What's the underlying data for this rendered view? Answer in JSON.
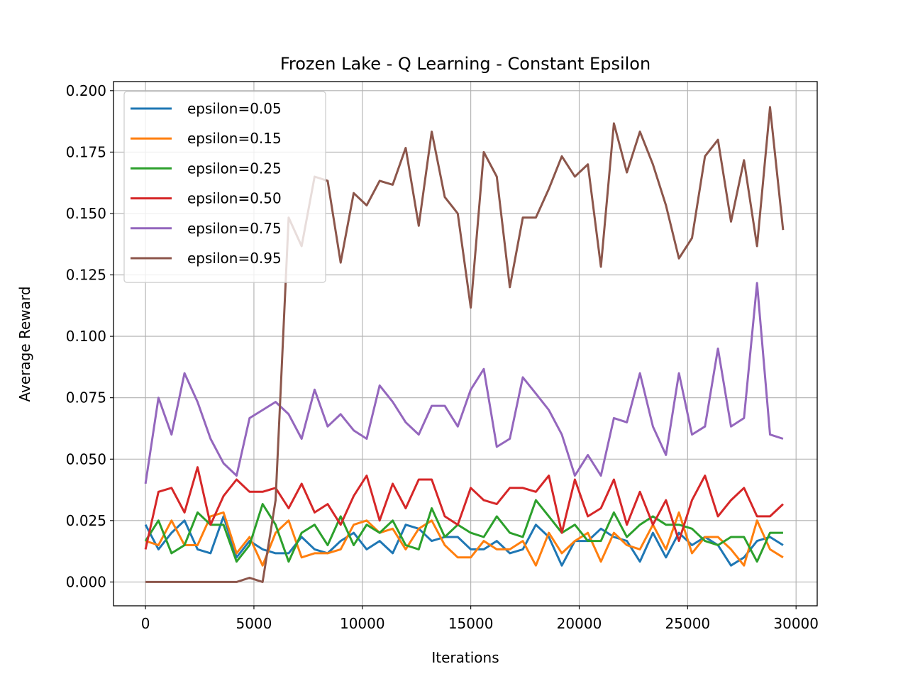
{
  "chart_data": {
    "type": "line",
    "title": "Frozen Lake - Q Learning - Constant Epsilon",
    "xlabel": "Iterations",
    "ylabel": "Average Reward",
    "xlim": [
      -1475,
      30975
    ],
    "ylim": [
      -0.0097,
      0.2037
    ],
    "xticks": [
      0,
      5000,
      10000,
      15000,
      20000,
      25000,
      30000
    ],
    "xtick_labels": [
      "0",
      "5000",
      "10000",
      "15000",
      "20000",
      "25000",
      "30000"
    ],
    "yticks": [
      0.0,
      0.025,
      0.05,
      0.075,
      0.1,
      0.125,
      0.15,
      0.175,
      0.2
    ],
    "ytick_labels": [
      "0.000",
      "0.025",
      "0.050",
      "0.075",
      "0.100",
      "0.125",
      "0.150",
      "0.175",
      "0.200"
    ],
    "grid": true,
    "legend_position": "upper-left",
    "x": [
      0,
      600,
      1200,
      1800,
      2400,
      3000,
      3600,
      4200,
      4800,
      5400,
      6000,
      6600,
      7200,
      7800,
      8400,
      9000,
      9600,
      10200,
      10800,
      11400,
      12000,
      12600,
      13200,
      13800,
      14400,
      15000,
      15600,
      16200,
      16800,
      17400,
      18000,
      18600,
      19200,
      19800,
      20400,
      21000,
      21600,
      22200,
      22800,
      23400,
      24000,
      24600,
      25200,
      25800,
      26400,
      27000,
      27600,
      28200,
      28800,
      29400
    ],
    "series": [
      {
        "name": "epsilon=0.05",
        "color": "#1f77b4",
        "values": [
          0.0233,
          0.0133,
          0.02,
          0.025,
          0.0133,
          0.0117,
          0.0267,
          0.01,
          0.0167,
          0.0133,
          0.0117,
          0.0117,
          0.0183,
          0.0133,
          0.0117,
          0.0167,
          0.02,
          0.0133,
          0.0167,
          0.0117,
          0.0233,
          0.0217,
          0.0167,
          0.0183,
          0.0183,
          0.0133,
          0.0133,
          0.0167,
          0.0117,
          0.0133,
          0.0233,
          0.0183,
          0.0067,
          0.0167,
          0.0167,
          0.0217,
          0.0183,
          0.0167,
          0.0083,
          0.02,
          0.01,
          0.02,
          0.015,
          0.0183,
          0.015,
          0.0067,
          0.01,
          0.0167,
          0.0183,
          0.015
        ]
      },
      {
        "name": "epsilon=0.15",
        "color": "#ff7f0e",
        "values": [
          0.0167,
          0.015,
          0.025,
          0.015,
          0.015,
          0.0267,
          0.0283,
          0.0117,
          0.0183,
          0.0067,
          0.02,
          0.025,
          0.01,
          0.0117,
          0.0117,
          0.0133,
          0.0233,
          0.025,
          0.02,
          0.0217,
          0.0133,
          0.0217,
          0.025,
          0.015,
          0.01,
          0.01,
          0.0167,
          0.0133,
          0.0133,
          0.0167,
          0.0067,
          0.02,
          0.0117,
          0.0167,
          0.02,
          0.0083,
          0.02,
          0.015,
          0.0133,
          0.0233,
          0.0133,
          0.0283,
          0.0117,
          0.0183,
          0.0183,
          0.0133,
          0.0067,
          0.025,
          0.0133,
          0.01
        ]
      },
      {
        "name": "epsilon=0.25",
        "color": "#2ca02c",
        "values": [
          0.0167,
          0.025,
          0.0117,
          0.015,
          0.0283,
          0.0233,
          0.0233,
          0.0083,
          0.015,
          0.0317,
          0.0233,
          0.0083,
          0.02,
          0.0233,
          0.015,
          0.0267,
          0.015,
          0.0233,
          0.02,
          0.025,
          0.015,
          0.0133,
          0.03,
          0.0183,
          0.0233,
          0.02,
          0.0183,
          0.0267,
          0.02,
          0.0183,
          0.0333,
          0.0267,
          0.02,
          0.0233,
          0.0167,
          0.0167,
          0.0283,
          0.0183,
          0.0233,
          0.0267,
          0.0233,
          0.0233,
          0.0217,
          0.0167,
          0.015,
          0.0183,
          0.0183,
          0.0083,
          0.02,
          0.02
        ]
      },
      {
        "name": "epsilon=0.50",
        "color": "#d62728",
        "values": [
          0.0133,
          0.0367,
          0.0383,
          0.0283,
          0.0467,
          0.0233,
          0.035,
          0.0417,
          0.0367,
          0.0367,
          0.0383,
          0.03,
          0.04,
          0.0283,
          0.0317,
          0.0233,
          0.035,
          0.0433,
          0.025,
          0.04,
          0.03,
          0.0417,
          0.0417,
          0.0267,
          0.0233,
          0.0383,
          0.0333,
          0.0317,
          0.0383,
          0.0383,
          0.0367,
          0.0433,
          0.02,
          0.0417,
          0.0267,
          0.03,
          0.0417,
          0.0233,
          0.0367,
          0.0233,
          0.0333,
          0.0167,
          0.0333,
          0.0433,
          0.0267,
          0.0333,
          0.0383,
          0.0267,
          0.0267,
          0.0317
        ]
      },
      {
        "name": "epsilon=0.75",
        "color": "#9467bd",
        "values": [
          0.04,
          0.075,
          0.06,
          0.085,
          0.0733,
          0.0583,
          0.0483,
          0.0433,
          0.0667,
          0.07,
          0.0733,
          0.0683,
          0.0583,
          0.0783,
          0.0633,
          0.0683,
          0.0617,
          0.0583,
          0.08,
          0.0733,
          0.065,
          0.06,
          0.0717,
          0.0717,
          0.0633,
          0.0783,
          0.0867,
          0.055,
          0.0583,
          0.0833,
          0.0767,
          0.07,
          0.06,
          0.0433,
          0.0517,
          0.0433,
          0.0667,
          0.065,
          0.085,
          0.0633,
          0.0517,
          0.085,
          0.06,
          0.0633,
          0.095,
          0.0633,
          0.0667,
          0.1217,
          0.06,
          0.0583
        ]
      },
      {
        "name": "epsilon=0.95",
        "color": "#8c564b",
        "values": [
          0.0,
          0.0,
          0.0,
          0.0,
          0.0,
          0.0,
          0.0,
          0.0,
          0.0017,
          0.0,
          0.0333,
          0.1483,
          0.1367,
          0.165,
          0.1633,
          0.13,
          0.1583,
          0.1533,
          0.1633,
          0.1617,
          0.1767,
          0.145,
          0.1833,
          0.1567,
          0.15,
          0.1117,
          0.175,
          0.165,
          0.12,
          0.1483,
          0.1483,
          0.16,
          0.1733,
          0.165,
          0.17,
          0.1283,
          0.1867,
          0.1667,
          0.1833,
          0.17,
          0.1533,
          0.1317,
          0.14,
          0.1733,
          0.18,
          0.1467,
          0.1717,
          0.1367,
          0.1933,
          0.1433
        ]
      }
    ]
  }
}
